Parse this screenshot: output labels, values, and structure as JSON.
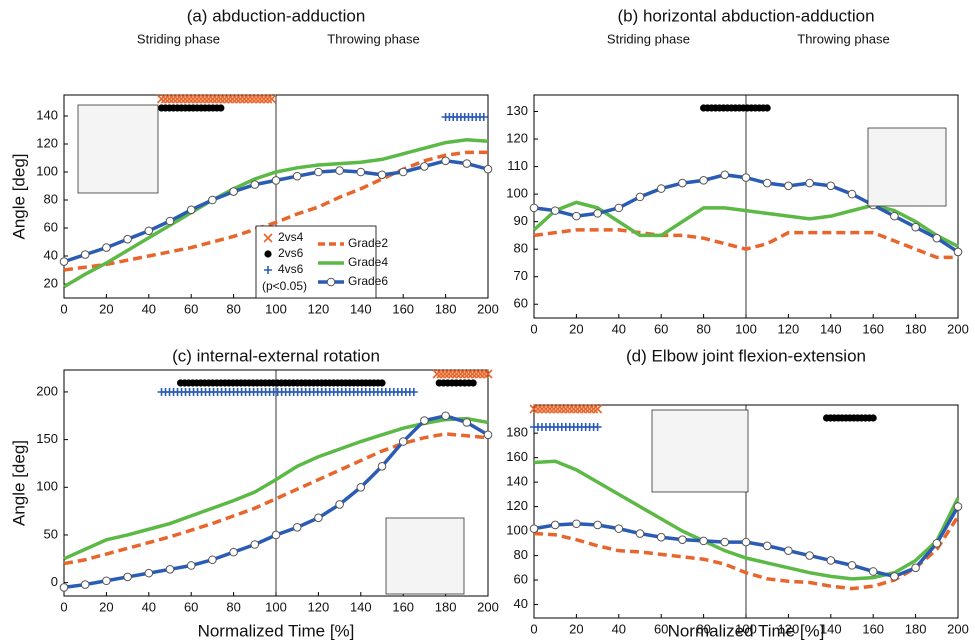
{
  "chart_data": [
    {
      "type": "line",
      "title": "(a) abduction-adduction",
      "phases": [
        "Striding phase",
        "Throwing phase"
      ],
      "ylabel": "Angle [deg]",
      "x": [
        0,
        10,
        20,
        30,
        40,
        50,
        60,
        70,
        80,
        90,
        100,
        110,
        120,
        130,
        140,
        150,
        160,
        170,
        180,
        190,
        200
      ],
      "xlim": [
        0,
        200
      ],
      "xticks": [
        0,
        20,
        40,
        60,
        80,
        100,
        120,
        140,
        160,
        180,
        200
      ],
      "ylim": [
        10,
        155
      ],
      "yticks": [
        20,
        40,
        60,
        80,
        100,
        120,
        140
      ],
      "series": [
        {
          "values": [
            30,
            32,
            34,
            37,
            40,
            43,
            46,
            50,
            54,
            59,
            64,
            70,
            75,
            82,
            88,
            95,
            102,
            108,
            112,
            114,
            114
          ]
        },
        {
          "values": [
            18,
            27,
            35,
            44,
            53,
            62,
            71,
            80,
            88,
            95,
            100,
            103,
            105,
            106,
            107,
            109,
            113,
            117,
            121,
            123,
            122
          ]
        },
        {
          "values": [
            36,
            41,
            46,
            52,
            58,
            65,
            73,
            80,
            86,
            91,
            94,
            97,
            100,
            101,
            100,
            98,
            100,
            104,
            108,
            106,
            102
          ]
        }
      ],
      "significance": [
        {
          "test": 0,
          "start": 46,
          "end": 98
        },
        {
          "test": 1,
          "start": 46,
          "end": 74
        },
        {
          "test": 2,
          "start": 180,
          "end": 198
        }
      ]
    },
    {
      "type": "line",
      "title": "(b) horizontal abduction-adduction",
      "phases": [
        "Striding phase",
        "Throwing phase"
      ],
      "x": [
        0,
        10,
        20,
        30,
        40,
        50,
        60,
        70,
        80,
        90,
        100,
        110,
        120,
        130,
        140,
        150,
        160,
        170,
        180,
        190,
        200
      ],
      "xlim": [
        0,
        200
      ],
      "xticks": [
        0,
        20,
        40,
        60,
        80,
        100,
        120,
        140,
        160,
        180,
        200
      ],
      "ylim": [
        55,
        136
      ],
      "yticks": [
        60,
        70,
        80,
        90,
        100,
        110,
        120,
        130
      ],
      "series": [
        {
          "values": [
            85,
            86,
            87,
            87,
            87,
            86,
            85,
            85,
            84,
            82,
            80,
            82,
            86,
            86,
            86,
            86,
            86,
            83,
            80,
            77,
            77
          ]
        },
        {
          "values": [
            87,
            94,
            97,
            95,
            90,
            85,
            85,
            90,
            95,
            95,
            94,
            93,
            92,
            91,
            92,
            94,
            96,
            94,
            90,
            85,
            81
          ]
        },
        {
          "values": [
            95,
            94,
            92,
            93,
            95,
            99,
            102,
            104,
            105,
            107,
            106,
            104,
            103,
            104,
            103,
            100,
            96,
            92,
            88,
            84,
            79
          ]
        }
      ],
      "significance": [
        {
          "test": 1,
          "start": 80,
          "end": 110
        }
      ]
    },
    {
      "type": "line",
      "title": "(c) internal-external rotation",
      "xlabel": "Normalized Time  [%]",
      "ylabel": "Angle [deg]",
      "x": [
        0,
        10,
        20,
        30,
        40,
        50,
        60,
        70,
        80,
        90,
        100,
        110,
        120,
        130,
        140,
        150,
        160,
        170,
        180,
        190,
        200
      ],
      "xlim": [
        0,
        200
      ],
      "xticks": [
        0,
        20,
        40,
        60,
        80,
        100,
        120,
        140,
        160,
        180,
        200
      ],
      "ylim": [
        -14,
        223
      ],
      "yticks": [
        0,
        50,
        100,
        150,
        200
      ],
      "series": [
        {
          "values": [
            20,
            24,
            30,
            36,
            42,
            48,
            55,
            62,
            70,
            78,
            88,
            98,
            108,
            118,
            128,
            138,
            146,
            152,
            156,
            154,
            152
          ]
        },
        {
          "values": [
            25,
            35,
            45,
            50,
            56,
            62,
            70,
            78,
            86,
            95,
            108,
            122,
            132,
            140,
            148,
            155,
            162,
            167,
            171,
            172,
            168
          ]
        },
        {
          "values": [
            -5,
            -2,
            2,
            6,
            10,
            14,
            18,
            24,
            32,
            40,
            50,
            58,
            68,
            82,
            100,
            122,
            148,
            170,
            175,
            168,
            155
          ]
        }
      ],
      "significance": [
        {
          "test": 0,
          "start": 176,
          "end": 200
        },
        {
          "test": 1,
          "start": 55,
          "end": 150
        },
        {
          "test": 1,
          "start": 177,
          "end": 193
        },
        {
          "test": 2,
          "start": 46,
          "end": 165
        }
      ]
    },
    {
      "type": "line",
      "title": "(d) Elbow joint flexion-extension",
      "xlabel": "Normalized Time  [%]",
      "x": [
        0,
        10,
        20,
        30,
        40,
        50,
        60,
        70,
        80,
        90,
        100,
        110,
        120,
        130,
        140,
        150,
        160,
        170,
        180,
        190,
        200
      ],
      "xlim": [
        0,
        200
      ],
      "xticks": [
        0,
        20,
        40,
        60,
        80,
        100,
        120,
        140,
        160,
        180,
        200
      ],
      "ylim": [
        29,
        203
      ],
      "yticks": [
        40,
        60,
        80,
        100,
        120,
        140,
        160,
        180
      ],
      "series": [
        {
          "values": [
            98,
            97,
            93,
            88,
            84,
            83,
            81,
            79,
            77,
            73,
            66,
            61,
            59,
            58,
            55,
            53,
            55,
            60,
            70,
            85,
            112
          ]
        },
        {
          "values": [
            156,
            157,
            150,
            140,
            130,
            120,
            110,
            100,
            92,
            84,
            78,
            74,
            70,
            66,
            63,
            61,
            62,
            66,
            76,
            92,
            127
          ]
        },
        {
          "values": [
            102,
            105,
            106,
            105,
            102,
            98,
            95,
            93,
            92,
            91,
            91,
            88,
            84,
            80,
            76,
            72,
            67,
            63,
            70,
            90,
            120
          ]
        }
      ],
      "significance": [
        {
          "test": 0,
          "start": 0,
          "end": 30
        },
        {
          "test": 2,
          "start": 0,
          "end": 30
        },
        {
          "test": 1,
          "start": 138,
          "end": 160
        }
      ]
    }
  ],
  "legend": {
    "series": [
      {
        "name": "Grade2",
        "color": "#e8652b",
        "style": "dashed"
      },
      {
        "name": "Grade4",
        "color": "#5cb946",
        "style": "solid"
      },
      {
        "name": "Grade6",
        "color": "#2a5bb5",
        "style": "circles"
      }
    ],
    "tests": [
      {
        "name": "2vs4",
        "color": "#e8652b",
        "marker": "x"
      },
      {
        "name": "2vs6",
        "color": "#000000",
        "marker": "dot"
      },
      {
        "name": "4vs6",
        "color": "#2a5bb5",
        "marker": "plus"
      }
    ],
    "note": "(p<0.05)"
  }
}
